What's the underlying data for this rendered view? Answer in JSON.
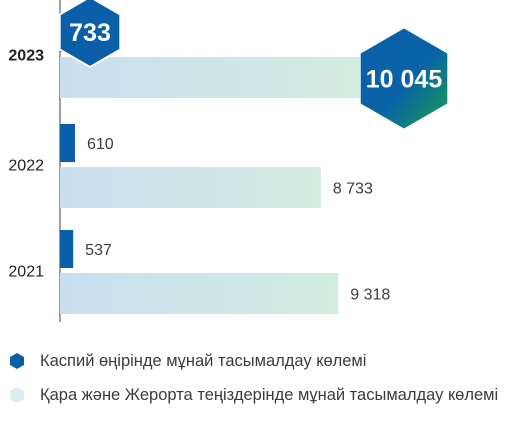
{
  "chart_data": {
    "type": "bar",
    "orientation": "horizontal",
    "categories": [
      "2023",
      "2022",
      "2021"
    ],
    "series": [
      {
        "name": "Каспий өңірінде мұнай тасымалдау көлемі",
        "values": [
          733,
          610,
          537
        ],
        "color": "#0a5fa8"
      },
      {
        "name": "Қара және Жерорта теңіздерінде мұнай тасымалдау көлемі",
        "values": [
          10045,
          8733,
          9318
        ],
        "color": "#cfe6ea"
      }
    ],
    "value_labels": [
      [
        "733",
        "610",
        "537"
      ],
      [
        "10 045",
        "8 733",
        "9 318"
      ]
    ],
    "highlight_category": "2023",
    "title": "",
    "xlabel": "",
    "ylabel": "",
    "xlim": [
      0,
      10500
    ],
    "grid": false,
    "legend_position": "bottom-left"
  },
  "legend": {
    "items": [
      {
        "label": "Каспий өңірінде мұнай тасымалдау көлемі",
        "icon": "hexagon-dark-blue-icon",
        "color": "#0a5fa8"
      },
      {
        "label": "Қара және Жерорта теңіздерінде мұнай тасымалдау көлемі",
        "icon": "hexagon-light-icon",
        "color": "#d8eef2"
      }
    ]
  }
}
